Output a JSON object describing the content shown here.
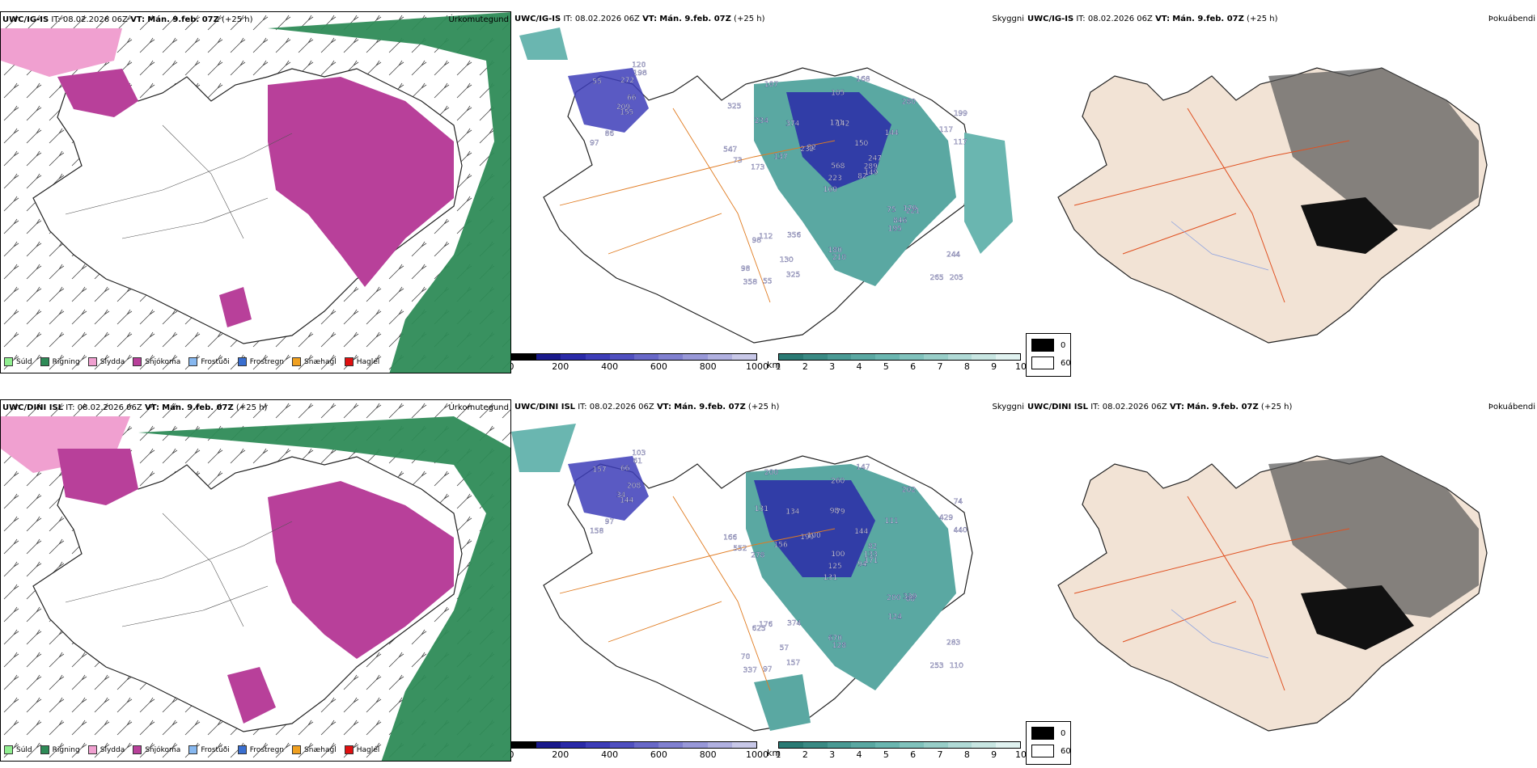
{
  "rows": [
    {
      "precip": {
        "title_model": "UWC/IG-IS",
        "title_it_label": "IT:",
        "title_it": "08.02.2026 06Z",
        "title_vt_label": "VT:",
        "title_vt": "Mán. 9.feb. 07Z",
        "title_lead": "(+25 h)",
        "field": "Úrkomutegund"
      },
      "cloud": {
        "title_model": "UWC/IG-IS",
        "title_it_label": "IT:",
        "title_it": "08.02.2026 06Z",
        "title_vt_label": "VT:",
        "title_vt": "Mán. 9.feb. 07Z",
        "title_lead": "(+25 h)",
        "field": "Skyggni",
        "ceiling_labels": [
          "155",
          "55",
          "209",
          "97",
          "66",
          "86",
          "120",
          "272",
          "198",
          "82",
          "107",
          "205",
          "173",
          "199",
          "160",
          "144",
          "55",
          "171",
          "150",
          "112",
          "82",
          "98",
          "130",
          "142",
          "247",
          "221",
          "234",
          "105",
          "73",
          "75",
          "117",
          "223",
          "180",
          "568",
          "374",
          "280",
          "356",
          "265",
          "244",
          "179",
          "168",
          "232",
          "137",
          "195",
          "325",
          "547",
          "289",
          "358",
          "210",
          "149",
          "98",
          "117",
          "325",
          "846"
        ]
      },
      "fog": {
        "title_model": "UWC/IG-IS",
        "title_it_label": "IT:",
        "title_it": "08.02.2026 06Z",
        "title_vt_label": "VT:",
        "title_vt": "Mán. 9.feb. 07Z",
        "title_lead": "(+25 h)",
        "field": "Þokuábendi"
      }
    },
    {
      "precip": {
        "title_model": "UWC/DINI ISL",
        "title_it_label": "IT:",
        "title_it": "08.02.2026 06Z",
        "title_vt_label": "VT:",
        "title_vt": "Mán. 9.feb. 07Z",
        "title_lead": "(+25 h)",
        "field": "Úrkomutegund"
      },
      "cloud": {
        "title_model": "UWC/DINI ISL",
        "title_it_label": "IT:",
        "title_it": "08.02.2026 06Z",
        "title_vt_label": "VT:",
        "title_vt": "Mán. 9.feb. 07Z",
        "title_lead": "(+25 h)",
        "field": "Skyggni",
        "ceiling_labels": [
          "144",
          "157",
          "34",
          "158",
          "208",
          "97",
          "103",
          "66",
          "61",
          "94",
          "200",
          "110",
          "278",
          "74",
          "131",
          "111",
          "97",
          "98",
          "144",
          "176",
          "100",
          "70",
          "57",
          "79",
          "82",
          "88",
          "131",
          "260",
          "552",
          "200",
          "440",
          "125",
          "670",
          "100",
          "134",
          "202",
          "374",
          "253",
          "283",
          "339",
          "147",
          "199",
          "156",
          "124",
          "157",
          "166",
          "133",
          "337",
          "128",
          "171",
          "625",
          "429"
        ]
      },
      "fog": {
        "title_model": "UWC/DINI ISL",
        "title_it_label": "IT:",
        "title_it": "08.02.2026 06Z",
        "title_vt_label": "VT:",
        "title_vt": "Mán. 9.feb. 07Z",
        "title_lead": "(+25 h)",
        "field": "Þokuábendi"
      }
    }
  ],
  "precip_legend": [
    {
      "label": "Súld",
      "color": "#90ee90"
    },
    {
      "label": "Rigning",
      "color": "#2e8b57"
    },
    {
      "label": "Slydda",
      "color": "#f0a0d0"
    },
    {
      "label": "Snjókoma",
      "color": "#b8409a"
    },
    {
      "label": "Frostúði",
      "color": "#87b8f0"
    },
    {
      "label": "Frostregn",
      "color": "#3a6fd0"
    },
    {
      "label": "Snæhagl",
      "color": "#f0a020"
    },
    {
      "label": "Haglél",
      "color": "#e01010"
    }
  ],
  "ceiling_scale": {
    "unit": "m",
    "ticks": [
      "0",
      "200",
      "400",
      "600",
      "800",
      "1000"
    ],
    "colors": [
      "#000000",
      "#1a1a8c",
      "#2a2aa8",
      "#3d3db8",
      "#5050c0",
      "#6868c8",
      "#8080d0",
      "#9898d8",
      "#b0b0e0",
      "#c8c8e8"
    ]
  },
  "visibility_scale": {
    "unit": "km",
    "ticks": [
      "1",
      "2",
      "3",
      "4",
      "5",
      "6",
      "7",
      "8",
      "9",
      "10"
    ],
    "colors": [
      "#2a7a74",
      "#3a8a84",
      "#4a9a94",
      "#5aa8a2",
      "#6ab6b0",
      "#80c2bc",
      "#98cec8",
      "#b0dad6",
      "#c8e6e2",
      "#e0f2f0"
    ]
  },
  "fog_legend": [
    {
      "label": "0",
      "color": "#000000"
    },
    {
      "label": "60",
      "color": "#ffffff"
    }
  ]
}
